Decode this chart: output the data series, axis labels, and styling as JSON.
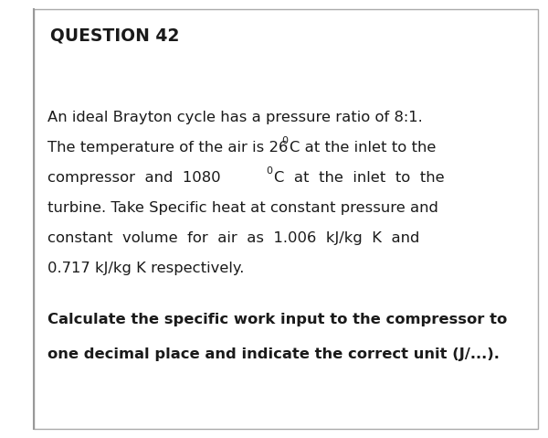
{
  "title": "QUESTION 42",
  "background_color": "#ffffff",
  "border_left_color": "#888888",
  "title_color": "#1a1a1a",
  "text_color": "#1a1a1a",
  "title_fontsize": 13.5,
  "body_fontsize": 11.8,
  "bold_fontsize": 11.8,
  "line1": "An ideal Brayton cycle has a pressure ratio of 8:1.",
  "line2_pre": "The temperature of the air is 26 ",
  "line2_sup": "0",
  "line2_post": "C at the inlet to the",
  "line3_pre": "compressor  and  1080  ",
  "line3_sup": "0",
  "line3_post": "C  at  the  inlet  to  the",
  "line4": "turbine. Take Specific heat at constant pressure and",
  "line5": "constant  volume  for  air  as  1.006  kJ/kg  K  and",
  "line6": "0.717 kJ/kg K respectively.",
  "bold_line1": "Calculate the specific work input to the compressor to",
  "bold_line2": "one decimal place and indicate the correct unit (J/...)."
}
